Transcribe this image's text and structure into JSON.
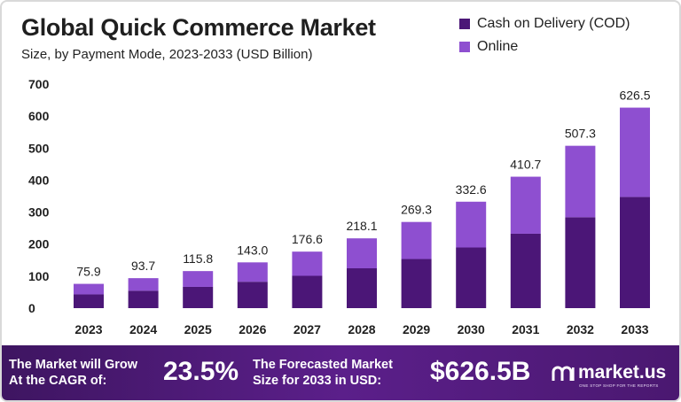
{
  "header": {
    "title": "Global Quick Commerce Market",
    "subtitle": "Size, by Payment Mode, 2023-2033 (USD Billion)"
  },
  "legend": [
    {
      "label": "Cash on Delivery (COD)",
      "color": "#4b1677"
    },
    {
      "label": "Online",
      "color": "#8e4fd0"
    }
  ],
  "chart_data": {
    "type": "bar",
    "stacked": true,
    "categories": [
      "2023",
      "2024",
      "2025",
      "2026",
      "2027",
      "2028",
      "2029",
      "2030",
      "2031",
      "2032",
      "2033"
    ],
    "series": [
      {
        "name": "Cash on Delivery (COD)",
        "color": "#4b1677",
        "values": [
          43.0,
          54.5,
          66.5,
          82.5,
          101.0,
          124.5,
          153.5,
          189.5,
          232.5,
          284.0,
          347.5
        ]
      },
      {
        "name": "Online",
        "color": "#8e4fd0",
        "values": [
          32.9,
          39.2,
          49.3,
          60.5,
          75.6,
          93.6,
          115.8,
          143.1,
          178.2,
          223.3,
          279.0
        ]
      }
    ],
    "totals": [
      "75.9",
      "93.7",
      "115.8",
      "143.0",
      "176.6",
      "218.1",
      "269.3",
      "332.6",
      "410.7",
      "507.3",
      "626.5"
    ],
    "y_ticks": [
      0,
      100,
      200,
      300,
      400,
      500,
      600,
      700
    ],
    "ylim": [
      0,
      700
    ],
    "grid": false,
    "legend_position": "top-right"
  },
  "banner": {
    "cagr_text_line1": "The Market will Grow",
    "cagr_text_line2": "At the CAGR of:",
    "cagr_value": "23.5%",
    "forecast_text_line1": "The Forecasted Market",
    "forecast_text_line2": "Size for 2033 in USD:",
    "forecast_value": "$626.5B",
    "logo_text": "market.us",
    "logo_tagline": "ONE STOP SHOP FOR THE REPORTS"
  }
}
